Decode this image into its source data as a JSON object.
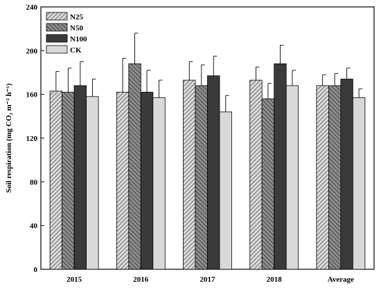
{
  "chart_data": {
    "type": "bar",
    "categories": [
      "2015",
      "2016",
      "2017",
      "2018",
      "Average"
    ],
    "series": [
      {
        "name": "N25",
        "values": [
          163,
          162,
          173,
          173,
          168
        ],
        "errors": [
          18,
          31,
          17,
          12,
          10
        ],
        "fill": "#d9d9d9",
        "pattern": "hatch-fwd"
      },
      {
        "name": "N50",
        "values": [
          162,
          188,
          168,
          156,
          168
        ],
        "errors": [
          22,
          28,
          19,
          14,
          11
        ],
        "fill": "#8c8c8c",
        "pattern": "hatch-back"
      },
      {
        "name": "N100",
        "values": [
          168,
          162,
          177,
          188,
          174
        ],
        "errors": [
          22,
          20,
          18,
          17,
          10
        ],
        "fill": "#3a3a3a",
        "pattern": "solid"
      },
      {
        "name": "CK",
        "values": [
          158,
          157,
          144,
          168,
          157
        ],
        "errors": [
          16,
          16,
          15,
          14,
          8
        ],
        "fill": "#d9d9d9",
        "pattern": "solid"
      }
    ],
    "ylabel": "Soil respiration (mg CO₂ m⁻² h⁻¹)",
    "xlabel": "",
    "ylim": [
      0,
      240
    ],
    "yticks": [
      0,
      40,
      80,
      120,
      160,
      200,
      240
    ],
    "legend": "top-left",
    "grid": false
  }
}
